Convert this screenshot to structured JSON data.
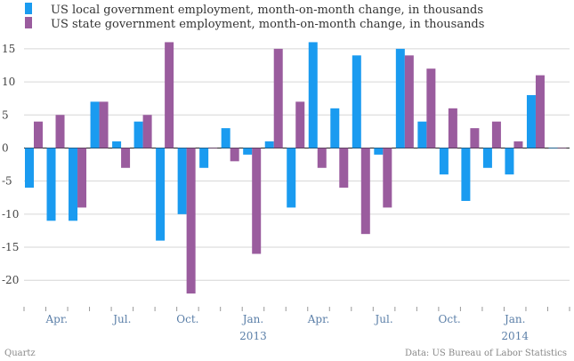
{
  "chart_data": {
    "type": "bar",
    "title": "",
    "xlabel": "",
    "ylabel": "",
    "ylim": [
      -24,
      17
    ],
    "yticks": [
      15,
      10,
      5,
      0,
      -5,
      -10,
      -15,
      -20
    ],
    "categories": [
      "Mar 2012",
      "Apr 2012",
      "May 2012",
      "Jun 2012",
      "Jul 2012",
      "Aug 2012",
      "Sep 2012",
      "Oct 2012",
      "Nov 2012",
      "Dec 2012",
      "Jan 2013",
      "Feb 2013",
      "Mar 2013",
      "Apr 2013",
      "May 2013",
      "Jun 2013",
      "Jul 2013",
      "Aug 2013",
      "Sep 2013",
      "Oct 2013",
      "Nov 2013",
      "Dec 2013",
      "Jan 2014",
      "Feb 2014",
      "Mar 2014"
    ],
    "series": [
      {
        "name": "US local government employment, month-on-month change, in thousands",
        "color": "#1a9bf0",
        "values": [
          -6,
          -11,
          -11,
          7,
          1,
          4,
          -14,
          -10,
          -3,
          3,
          -1,
          1,
          -9,
          16,
          6,
          14,
          -1,
          15,
          4,
          -4,
          -8,
          -3,
          -4,
          8,
          0
        ]
      },
      {
        "name": "US state government employment, month-on-month change, in thousands",
        "color": "#9a5c9e",
        "values": [
          4,
          5,
          -9,
          7,
          -3,
          5,
          16,
          -22,
          0,
          -2,
          -16,
          15,
          7,
          -3,
          -6,
          -13,
          -9,
          14,
          12,
          6,
          3,
          4,
          1,
          11,
          0
        ]
      }
    ],
    "x_ticks": [
      {
        "index": 1,
        "label": "Apr.",
        "sub": ""
      },
      {
        "index": 4,
        "label": "Jul.",
        "sub": ""
      },
      {
        "index": 7,
        "label": "Oct.",
        "sub": ""
      },
      {
        "index": 10,
        "label": "Jan.",
        "sub": "2013"
      },
      {
        "index": 13,
        "label": "Apr.",
        "sub": ""
      },
      {
        "index": 16,
        "label": "Jul.",
        "sub": ""
      },
      {
        "index": 19,
        "label": "Oct.",
        "sub": ""
      },
      {
        "index": 22,
        "label": "Jan.",
        "sub": "2014"
      }
    ],
    "legend_position": "top-left",
    "grid": true
  },
  "footer": {
    "source_left": "Quartz",
    "source_right": "Data: US Bureau of Labor Statistics"
  }
}
